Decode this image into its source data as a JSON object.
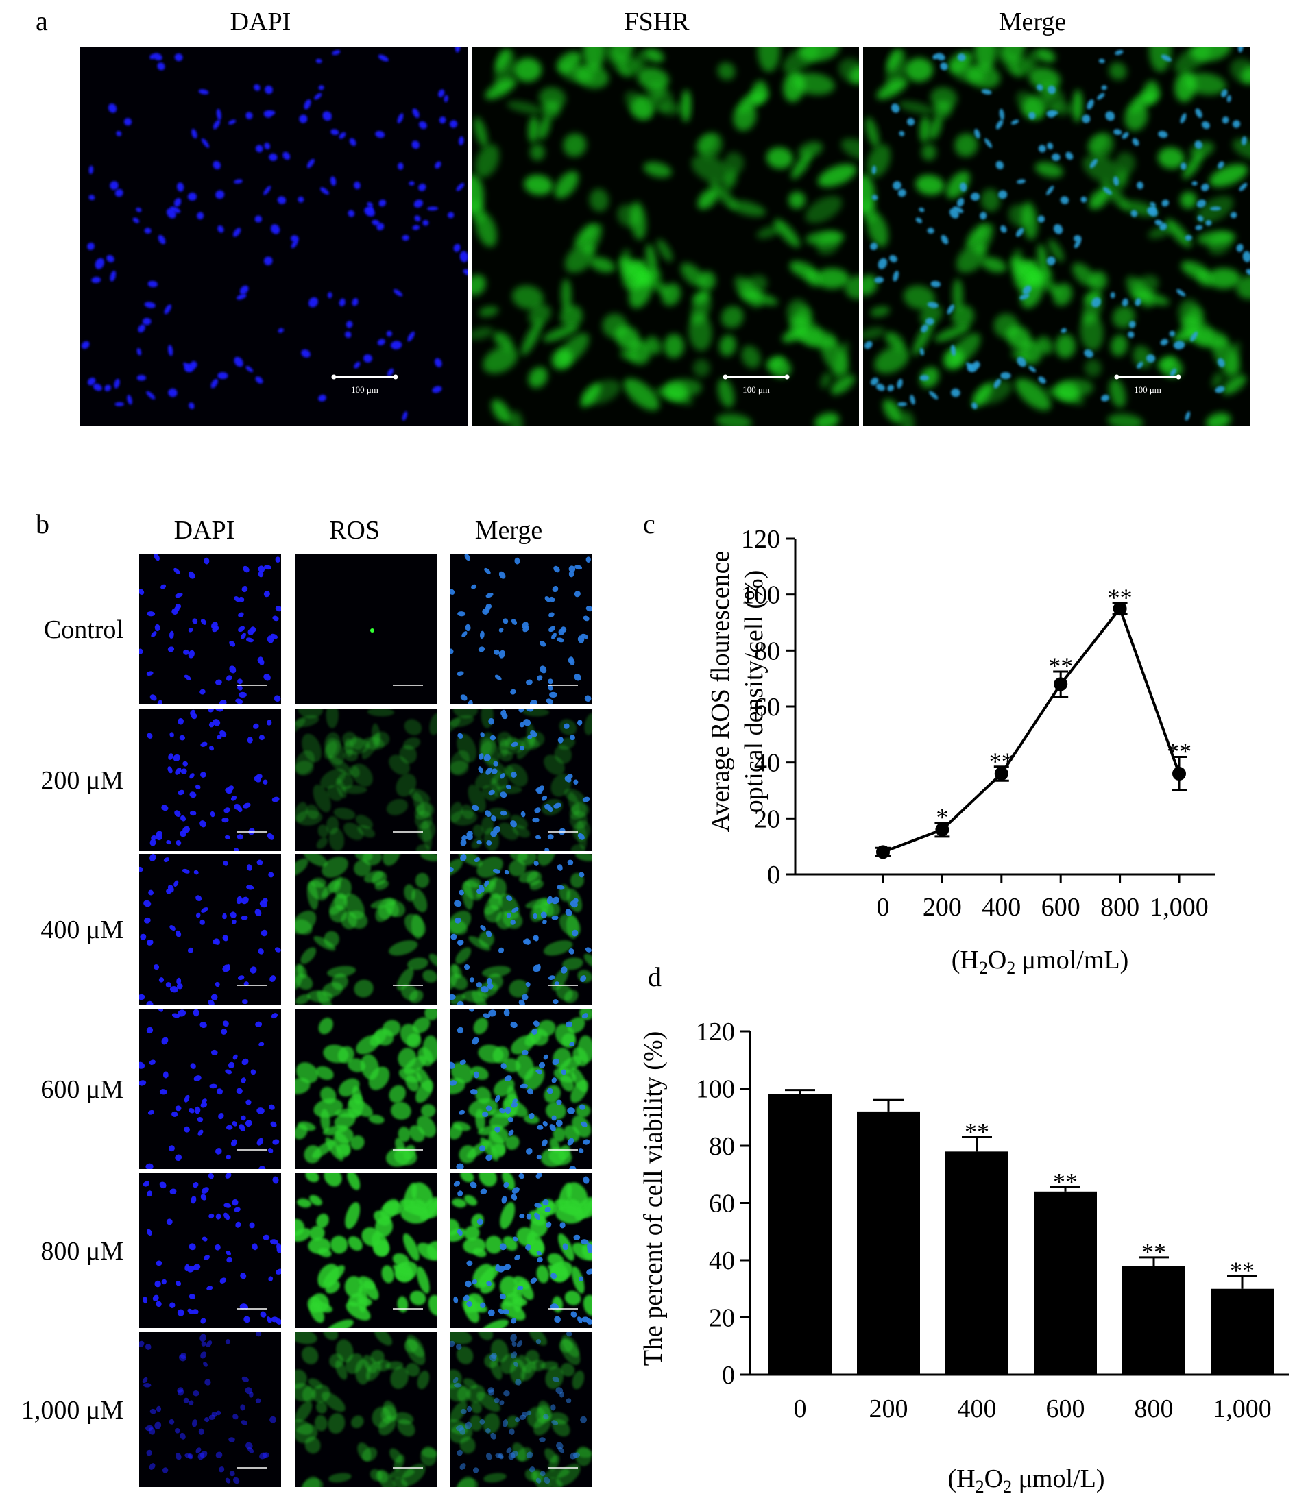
{
  "panel_a": {
    "label": "a",
    "titles": [
      "DAPI",
      "FSHR",
      "Merge"
    ],
    "scale_text": "100 μm",
    "colors": {
      "dapi": "#1a1aff",
      "fshr": "#22e022",
      "merge_nucleus": "#2aa0d8"
    }
  },
  "panel_b": {
    "label": "b",
    "titles": [
      "DAPI",
      "ROS",
      "Merge"
    ],
    "rows": [
      "Control",
      "200 μM",
      "400 μM",
      "600 μM",
      "800 μM",
      "1,000 μM"
    ],
    "ros_intensity": [
      0.0,
      0.15,
      0.45,
      0.8,
      1.0,
      0.3
    ]
  },
  "panel_c": {
    "label": "c",
    "chart_data": {
      "type": "line",
      "x": [
        "0",
        "200",
        "400",
        "600",
        "800",
        "1,000"
      ],
      "y": [
        8,
        16,
        36,
        68,
        95,
        36
      ],
      "errors": [
        1.5,
        2.5,
        2.5,
        4.5,
        2,
        6
      ],
      "significance": [
        "",
        "*",
        "**",
        "**",
        "**",
        "**"
      ],
      "ylabel_line1": "Average ROS flourescence",
      "ylabel_line2": "optical density/cell (%)",
      "xlabel_pre": "(H",
      "xlabel_sub1": "2",
      "xlabel_mid": "O",
      "xlabel_sub2": "2",
      "xlabel_post": " μmol/mL)",
      "ylim": [
        0,
        120
      ],
      "yticks": [
        0,
        20,
        40,
        60,
        80,
        100,
        120
      ]
    }
  },
  "panel_d": {
    "label": "d",
    "chart_data": {
      "type": "bar",
      "categories": [
        "0",
        "200",
        "400",
        "600",
        "800",
        "1,000"
      ],
      "values": [
        98,
        92,
        78,
        64,
        38,
        30
      ],
      "errors": [
        1.5,
        4,
        5,
        1.5,
        3,
        4.5
      ],
      "significance": [
        "",
        "",
        "**",
        "**",
        "**",
        "**"
      ],
      "ylabel": "The percent of cell viability (%)",
      "xlabel_pre": "(H",
      "xlabel_sub1": "2",
      "xlabel_mid": "O",
      "xlabel_sub2": "2",
      "xlabel_post": " μmol/L)",
      "ylim": [
        0,
        120
      ],
      "yticks": [
        0,
        20,
        40,
        60,
        80,
        100,
        120
      ]
    }
  }
}
